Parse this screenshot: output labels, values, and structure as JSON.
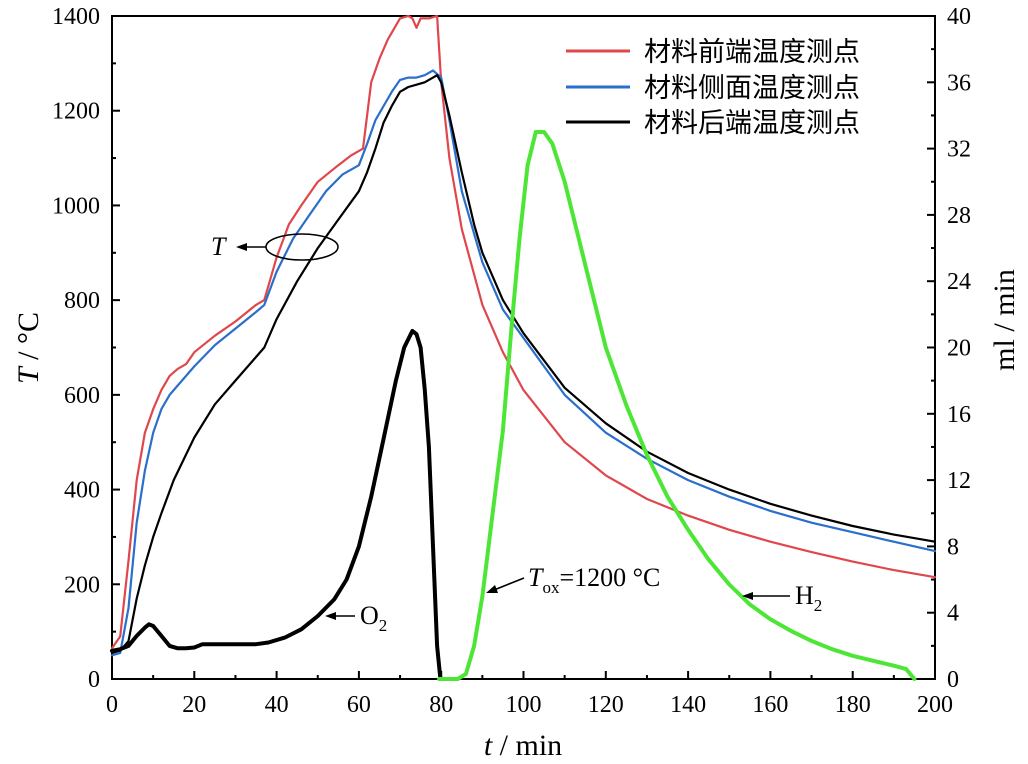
{
  "chart_data": {
    "type": "line",
    "x_axis": {
      "label_var": "t",
      "label_unit": " / min",
      "range": [
        0,
        200
      ],
      "ticks": [
        0,
        20,
        40,
        60,
        80,
        100,
        120,
        140,
        160,
        180,
        200
      ]
    },
    "y_axis_left": {
      "label_var": "T",
      "label_unit": " / °C",
      "range": [
        0,
        1400
      ],
      "ticks": [
        0,
        200,
        400,
        600,
        800,
        1000,
        1200,
        1400
      ]
    },
    "y_axis_right": {
      "label": "ml / min",
      "range": [
        0,
        40
      ],
      "ticks": [
        0,
        4,
        8,
        12,
        16,
        20,
        24,
        28,
        32,
        36,
        40
      ]
    },
    "series": [
      {
        "name": "材料前端温度测点",
        "axis": "left",
        "color": "#e0474c",
        "legend": true,
        "points": [
          [
            0,
            65
          ],
          [
            2,
            90
          ],
          [
            4,
            250
          ],
          [
            6,
            420
          ],
          [
            8,
            520
          ],
          [
            10,
            570
          ],
          [
            12,
            610
          ],
          [
            14,
            640
          ],
          [
            16,
            655
          ],
          [
            18,
            665
          ],
          [
            20,
            690
          ],
          [
            25,
            725
          ],
          [
            30,
            755
          ],
          [
            35,
            790
          ],
          [
            37,
            800
          ],
          [
            40,
            890
          ],
          [
            43,
            960
          ],
          [
            46,
            1000
          ],
          [
            50,
            1050
          ],
          [
            55,
            1085
          ],
          [
            58,
            1105
          ],
          [
            61,
            1120
          ],
          [
            63,
            1260
          ],
          [
            65,
            1310
          ],
          [
            67,
            1350
          ],
          [
            70,
            1395
          ],
          [
            72,
            1400
          ],
          [
            73,
            1395
          ],
          [
            74,
            1375
          ],
          [
            75,
            1395
          ],
          [
            77,
            1395
          ],
          [
            79,
            1400
          ],
          [
            80,
            1260
          ],
          [
            82,
            1100
          ],
          [
            85,
            950
          ],
          [
            90,
            790
          ],
          [
            95,
            690
          ],
          [
            100,
            610
          ],
          [
            110,
            500
          ],
          [
            120,
            430
          ],
          [
            130,
            380
          ],
          [
            140,
            345
          ],
          [
            150,
            315
          ],
          [
            160,
            290
          ],
          [
            170,
            268
          ],
          [
            180,
            248
          ],
          [
            190,
            230
          ],
          [
            200,
            215
          ]
        ]
      },
      {
        "name": "材料侧面温度测点",
        "axis": "left",
        "color": "#2a6fcb",
        "legend": true,
        "points": [
          [
            0,
            50
          ],
          [
            2,
            55
          ],
          [
            4,
            150
          ],
          [
            6,
            330
          ],
          [
            8,
            440
          ],
          [
            10,
            520
          ],
          [
            12,
            570
          ],
          [
            14,
            600
          ],
          [
            16,
            620
          ],
          [
            20,
            660
          ],
          [
            25,
            705
          ],
          [
            30,
            740
          ],
          [
            35,
            775
          ],
          [
            37,
            790
          ],
          [
            40,
            860
          ],
          [
            44,
            930
          ],
          [
            48,
            980
          ],
          [
            52,
            1030
          ],
          [
            56,
            1065
          ],
          [
            60,
            1085
          ],
          [
            62,
            1130
          ],
          [
            64,
            1180
          ],
          [
            66,
            1210
          ],
          [
            68,
            1240
          ],
          [
            70,
            1265
          ],
          [
            72,
            1270
          ],
          [
            74,
            1270
          ],
          [
            76,
            1275
          ],
          [
            78,
            1285
          ],
          [
            80,
            1270
          ],
          [
            82,
            1180
          ],
          [
            85,
            1030
          ],
          [
            90,
            880
          ],
          [
            95,
            780
          ],
          [
            100,
            720
          ],
          [
            110,
            600
          ],
          [
            120,
            520
          ],
          [
            130,
            465
          ],
          [
            140,
            420
          ],
          [
            150,
            385
          ],
          [
            160,
            355
          ],
          [
            170,
            330
          ],
          [
            180,
            310
          ],
          [
            190,
            290
          ],
          [
            200,
            270
          ]
        ]
      },
      {
        "name": "材料后端温度测点",
        "axis": "left",
        "color": "#000000",
        "legend": true,
        "points": [
          [
            0,
            55
          ],
          [
            2,
            60
          ],
          [
            4,
            80
          ],
          [
            6,
            170
          ],
          [
            8,
            240
          ],
          [
            10,
            300
          ],
          [
            12,
            350
          ],
          [
            15,
            420
          ],
          [
            20,
            510
          ],
          [
            25,
            580
          ],
          [
            30,
            630
          ],
          [
            35,
            680
          ],
          [
            37,
            700
          ],
          [
            40,
            760
          ],
          [
            45,
            840
          ],
          [
            50,
            910
          ],
          [
            55,
            970
          ],
          [
            60,
            1030
          ],
          [
            62,
            1070
          ],
          [
            64,
            1120
          ],
          [
            66,
            1175
          ],
          [
            68,
            1210
          ],
          [
            70,
            1240
          ],
          [
            72,
            1250
          ],
          [
            74,
            1255
          ],
          [
            76,
            1260
          ],
          [
            78,
            1270
          ],
          [
            79,
            1275
          ],
          [
            80,
            1260
          ],
          [
            82,
            1190
          ],
          [
            85,
            1070
          ],
          [
            88,
            960
          ],
          [
            90,
            900
          ],
          [
            95,
            800
          ],
          [
            100,
            730
          ],
          [
            110,
            615
          ],
          [
            120,
            540
          ],
          [
            130,
            480
          ],
          [
            140,
            435
          ],
          [
            150,
            400
          ],
          [
            160,
            370
          ],
          [
            170,
            345
          ],
          [
            180,
            323
          ],
          [
            190,
            305
          ],
          [
            200,
            290
          ]
        ]
      },
      {
        "name": "O₂",
        "axis": "right",
        "color": "#000000",
        "legend": false,
        "points": [
          [
            0,
            1.7
          ],
          [
            2,
            1.8
          ],
          [
            4,
            2.0
          ],
          [
            6,
            2.6
          ],
          [
            8,
            3.1
          ],
          [
            9,
            3.3
          ],
          [
            10,
            3.2
          ],
          [
            12,
            2.6
          ],
          [
            14,
            2.0
          ],
          [
            16,
            1.85
          ],
          [
            18,
            1.85
          ],
          [
            20,
            1.9
          ],
          [
            22,
            2.1
          ],
          [
            26,
            2.1
          ],
          [
            30,
            2.1
          ],
          [
            35,
            2.1
          ],
          [
            38,
            2.2
          ],
          [
            42,
            2.5
          ],
          [
            46,
            3.0
          ],
          [
            50,
            3.8
          ],
          [
            54,
            4.8
          ],
          [
            57,
            6.0
          ],
          [
            60,
            8.0
          ],
          [
            63,
            11.0
          ],
          [
            66,
            14.5
          ],
          [
            69,
            18.0
          ],
          [
            71,
            20.0
          ],
          [
            73,
            21.0
          ],
          [
            74,
            20.8
          ],
          [
            75,
            20.0
          ],
          [
            76,
            17.5
          ],
          [
            77,
            14.0
          ],
          [
            78,
            8.0
          ],
          [
            79,
            2.0
          ],
          [
            79.8,
            0
          ]
        ]
      },
      {
        "name": "H₂",
        "axis": "right",
        "color": "#4de636",
        "legend": false,
        "points": [
          [
            79.5,
            0
          ],
          [
            84,
            0
          ],
          [
            86,
            0.3
          ],
          [
            88,
            2.0
          ],
          [
            90,
            5.0
          ],
          [
            92,
            9.0
          ],
          [
            95,
            15.0
          ],
          [
            97,
            21.0
          ],
          [
            99,
            26.5
          ],
          [
            101,
            31.0
          ],
          [
            103,
            33.0
          ],
          [
            105,
            33.0
          ],
          [
            107,
            32.3
          ],
          [
            110,
            30.0
          ],
          [
            115,
            25.0
          ],
          [
            120,
            20.0
          ],
          [
            125,
            16.5
          ],
          [
            130,
            13.5
          ],
          [
            135,
            11.0
          ],
          [
            140,
            9.0
          ],
          [
            145,
            7.2
          ],
          [
            150,
            5.7
          ],
          [
            155,
            4.5
          ],
          [
            160,
            3.6
          ],
          [
            165,
            2.9
          ],
          [
            170,
            2.3
          ],
          [
            175,
            1.8
          ],
          [
            180,
            1.4
          ],
          [
            185,
            1.1
          ],
          [
            190,
            0.8
          ],
          [
            193,
            0.6
          ],
          [
            195,
            0
          ]
        ]
      }
    ],
    "annotations": {
      "T_label": "T",
      "o2_main": "O",
      "o2_sub": "2",
      "h2_main": "H",
      "h2_sub": "2",
      "tox_main": "T",
      "tox_sub": "ox",
      "tox_rest": "=1200 °C"
    },
    "legend_position": "top-right"
  }
}
